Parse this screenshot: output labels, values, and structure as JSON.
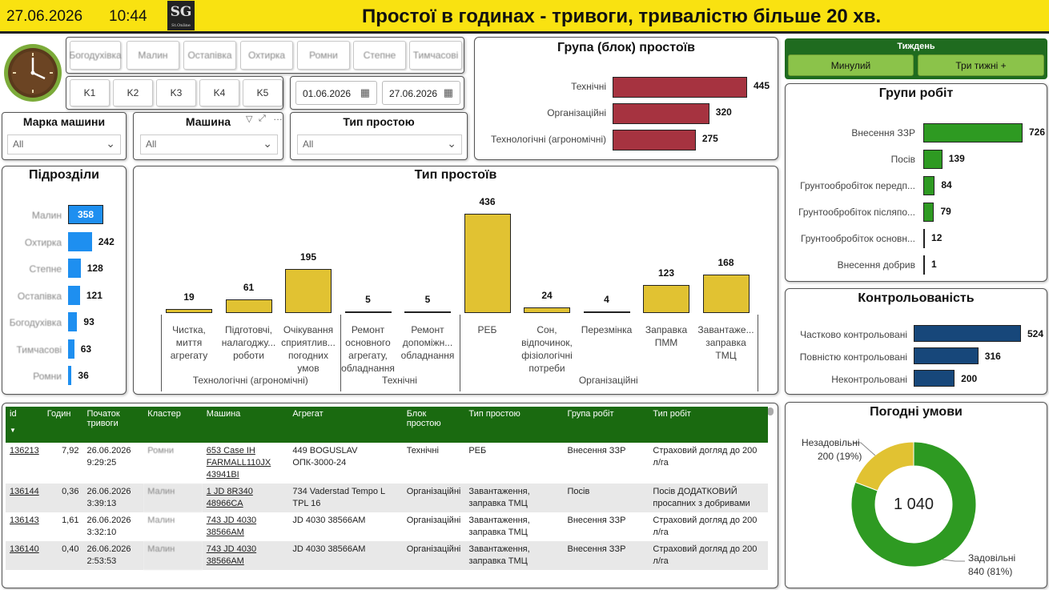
{
  "header": {
    "date": "27.06.2026",
    "time": "10:44",
    "logo_text": "SG",
    "logo_sub": "St.Online",
    "title": "Простої в годинах - тривоги, тривалістю більше 20 хв."
  },
  "slicers": {
    "divisions": [
      "Богодухівка",
      "Малин",
      "Остапівка",
      "Охтирка",
      "Ромни",
      "Степне",
      "Тимчасові"
    ],
    "clusters": [
      "K1",
      "K2",
      "K3",
      "K4",
      "K5"
    ],
    "date_from": "01.06.2026",
    "date_to": "27.06.2026"
  },
  "dropdowns": {
    "brand": {
      "label": "Марка машини",
      "value": "All"
    },
    "machine": {
      "label": "Машина",
      "value": "All"
    },
    "downtime_type": {
      "label": "Тип простою",
      "value": "All"
    }
  },
  "downtime_group": {
    "title": "Група (блок) простоїв",
    "color": "#a63340",
    "items": [
      {
        "label": "Технічні",
        "value": 445
      },
      {
        "label": "Організаційні",
        "value": 320
      },
      {
        "label": "Технологічні (агрономічні)",
        "value": 275
      }
    ]
  },
  "week": {
    "title": "Тиждень",
    "buttons": [
      "Минулий",
      "Три тижні +"
    ]
  },
  "work_groups": {
    "title": "Групи робіт",
    "color": "#2e9a22",
    "items": [
      {
        "label": "Внесення ЗЗР",
        "value": 726
      },
      {
        "label": "Посів",
        "value": 139
      },
      {
        "label": "Грунтообробіток передп...",
        "value": 84
      },
      {
        "label": "Грунтообробіток післяпо...",
        "value": 79
      },
      {
        "label": "Грунтообробіток основн...",
        "value": 12
      },
      {
        "label": "Внесення добрив",
        "value": 1
      }
    ]
  },
  "controllability": {
    "title": "Контрольованість",
    "color": "#17477a",
    "items": [
      {
        "label": "Частково контрольовані",
        "value": 524
      },
      {
        "label": "Повністю контрольовані",
        "value": 316
      },
      {
        "label": "Неконтрольовані",
        "value": 200
      }
    ]
  },
  "subdivisions": {
    "title": "Підрозділи",
    "color": "#1e8ff0",
    "items": [
      {
        "label": "Малин",
        "value": 358
      },
      {
        "label": "Охтирка",
        "value": 242
      },
      {
        "label": "Степне",
        "value": 128
      },
      {
        "label": "Остапівка",
        "value": 121
      },
      {
        "label": "Богодухівка",
        "value": 93
      },
      {
        "label": "Тимчасові",
        "value": 63
      },
      {
        "label": "Ромни",
        "value": 36
      }
    ]
  },
  "chart_data": {
    "type": "bar",
    "title": "Тип простоїв",
    "categories": [
      "Чистка, миття агрегату",
      "Підготовчі, налагоджу... роботи",
      "Очікування сприятлив... погодних умов",
      "Ремонт основного агрегату, обладнання",
      "Ремонт допоміжн... обладнання",
      "РЕБ",
      "Сон, відпочинок, фізіологічні потреби",
      "Перезмінка",
      "Заправка ПММ",
      "Завантаже... заправка ТМЦ"
    ],
    "values": [
      19,
      61,
      195,
      5,
      5,
      436,
      24,
      4,
      123,
      168
    ],
    "groups": [
      {
        "name": "Технологічні (агрономічні)",
        "count": 3
      },
      {
        "name": "Технічні",
        "count": 2
      },
      {
        "name": "Організаційні",
        "count": 5
      }
    ],
    "ylim": [
      0,
      436
    ],
    "color": "#e1c232"
  },
  "weather": {
    "title": "Погодні умови",
    "total": "1 040",
    "slices": [
      {
        "label": "Задовільні",
        "detail": "840 (81%)",
        "value": 840,
        "color": "#2e9a22"
      },
      {
        "label": "Незадовільні",
        "detail": "200 (19%)",
        "value": 200,
        "color": "#e1c232"
      }
    ]
  },
  "table": {
    "columns": [
      "id",
      "Годин",
      "Початок тривоги",
      "Кластер",
      "Машина",
      "Агрегат",
      "Блок простою",
      "Тип простою",
      "Група робіт",
      "Тип робіт"
    ],
    "rows": [
      [
        "136213",
        "7,92",
        "26.06.2026 9:29:25",
        "Ромни",
        "653 Case IH FARMALL110JX 43941BI",
        "449 BOGUSLAV ОПК-3000-24",
        "Технічні",
        "РЕБ",
        "Внесення ЗЗР",
        "Страховий догляд до 200 л/га"
      ],
      [
        "136144",
        "0,36",
        "26.06.2026 3:39:13",
        "Малин",
        "1 JD 8R340 48966CA",
        "734 Vaderstad Tempo L TPL 16",
        "Організаційні",
        "Завантаження, заправка ТМЦ",
        "Посів",
        "Посів ДОДАТКОВИЙ просапних з добривами"
      ],
      [
        "136143",
        "1,61",
        "26.06.2026 3:32:10",
        "Малин",
        "743 JD 4030 38566AM",
        "JD 4030 38566AM",
        "Організаційні",
        "Завантаження, заправка ТМЦ",
        "Внесення ЗЗР",
        "Страховий догляд до 200 л/га"
      ],
      [
        "136140",
        "0,40",
        "26.06.2026 2:53:53",
        "Малин",
        "743 JD 4030 38566AM",
        "JD 4030 38566AM",
        "Організаційні",
        "Завантаження, заправка ТМЦ",
        "Внесення ЗЗР",
        "Страховий догляд до 200 л/га"
      ]
    ]
  }
}
